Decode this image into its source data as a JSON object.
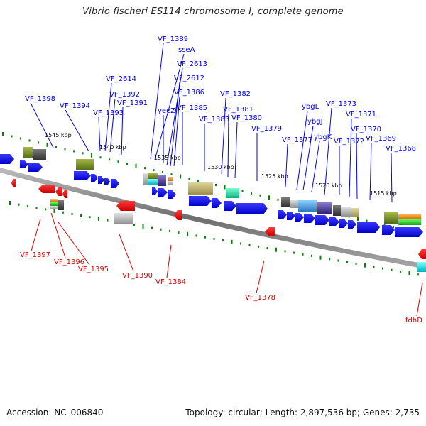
{
  "title": "Vibrio fischeri ES114 chromosome I, complete genome",
  "footer": {
    "accession": "Accession: NC_006840",
    "topology": "Topology: circular; Length: 2,897,536 bp; Genes: 2,735"
  },
  "colors": {
    "forward_label": "#0000ee",
    "reverse_label": "#dd0000",
    "forward_gene": "#0a0aee",
    "reverse_gene": "#ee0000",
    "backbone": "#8a8a8a",
    "tick": "#008800"
  },
  "kbp_ticks": [
    "1545 kbp",
    "1540 kbp",
    "1535 kbp",
    "1530 kbp",
    "1525 kbp",
    "1520 kbp",
    "1515 kbp"
  ],
  "forward_labels": [
    "VF_1398",
    "VF_1394",
    "VF_2614",
    "VF_1393",
    "VF_1392",
    "VF_1391",
    "VF_1389",
    "sseA",
    "VF_2613",
    "VF_2612",
    "VF_1386",
    "yeeZ",
    "VF_1385",
    "VF_1383",
    "VF_1382",
    "VF_1381",
    "VF_1380",
    "VF_1379",
    "VF_1377",
    "ybgL",
    "ybgJ",
    "ybgK",
    "VF_1373",
    "VF_1372",
    "VF_1371",
    "VF_1370",
    "VF_1369",
    "VF_1368"
  ],
  "reverse_labels": [
    "VF_1397",
    "VF_1396",
    "VF_1395",
    "VF_1390",
    "VF_1384",
    "VF_1378",
    "fdhD"
  ]
}
